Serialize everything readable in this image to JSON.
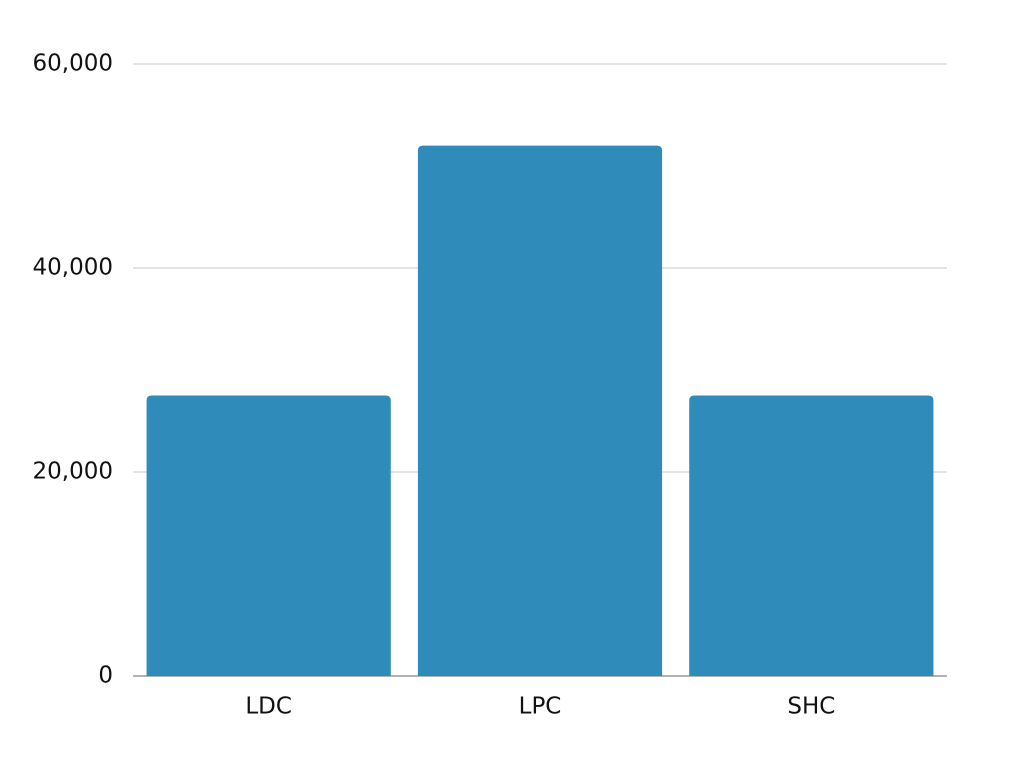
{
  "chart_data": {
    "type": "bar",
    "categories": [
      "LDC",
      "LPC",
      "SHC"
    ],
    "values": [
      27500,
      52000,
      27500
    ],
    "color": "#2e8bba",
    "ylim": [
      0,
      60000
    ],
    "yticks": [
      0,
      {
        "value": 20000,
        "label": "20,000"
      },
      {
        "value": 40000,
        "label": "40,000"
      },
      {
        "value": 60000,
        "label": "60,000"
      }
    ],
    "grid": true
  }
}
